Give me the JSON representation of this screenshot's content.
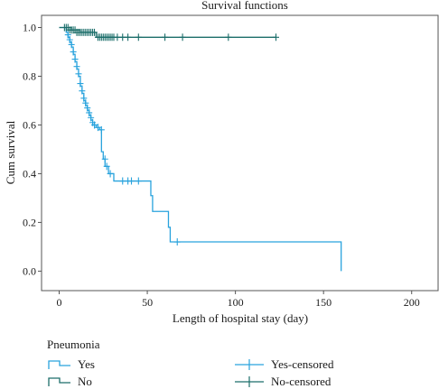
{
  "chart_data": {
    "type": "line",
    "subtype": "kaplan-meier",
    "title": "Survival functions",
    "xlabel": "Length of hospital stay (day)",
    "ylabel": "Cum survival",
    "xlim": [
      -10,
      215
    ],
    "ylim": [
      -0.08,
      1.05
    ],
    "xticks": [
      0,
      50,
      100,
      150,
      200
    ],
    "yticks": [
      0.0,
      0.2,
      0.4,
      0.6,
      0.8,
      1.0
    ],
    "xtick_labels": [
      "0",
      "50",
      "100",
      "150",
      "200"
    ],
    "ytick_labels": [
      "0.0",
      "0.2",
      "0.4",
      "0.6",
      "0.8",
      "1.0"
    ],
    "grid": false,
    "legend_title": "Pneumonia",
    "legend_position": "bottom",
    "series": [
      {
        "name": "Yes",
        "censored_label": "Yes-censored",
        "color": "#29a3dd",
        "steps": [
          [
            0,
            1.0
          ],
          [
            4,
            0.98
          ],
          [
            5,
            0.96
          ],
          [
            6,
            0.94
          ],
          [
            7,
            0.92
          ],
          [
            8,
            0.89
          ],
          [
            9,
            0.86
          ],
          [
            10,
            0.83
          ],
          [
            11,
            0.8
          ],
          [
            12,
            0.76
          ],
          [
            13,
            0.73
          ],
          [
            14,
            0.7
          ],
          [
            15,
            0.68
          ],
          [
            16,
            0.66
          ],
          [
            17,
            0.64
          ],
          [
            18,
            0.62
          ],
          [
            19,
            0.6
          ],
          [
            21,
            0.59
          ],
          [
            23,
            0.58
          ],
          [
            24,
            0.49
          ],
          [
            25,
            0.46
          ],
          [
            26,
            0.43
          ],
          [
            28,
            0.4
          ],
          [
            31,
            0.37
          ],
          [
            52,
            0.31
          ],
          [
            53,
            0.245
          ],
          [
            62,
            0.18
          ],
          [
            63,
            0.12
          ],
          [
            160,
            0.0
          ]
        ],
        "end_x": 160,
        "censored": [
          [
            5,
            0.97
          ],
          [
            6,
            0.95
          ],
          [
            7,
            0.93
          ],
          [
            8,
            0.9
          ],
          [
            9,
            0.87
          ],
          [
            10,
            0.84
          ],
          [
            11,
            0.81
          ],
          [
            12,
            0.77
          ],
          [
            13,
            0.74
          ],
          [
            14,
            0.71
          ],
          [
            15,
            0.69
          ],
          [
            16,
            0.67
          ],
          [
            17,
            0.65
          ],
          [
            18,
            0.63
          ],
          [
            19,
            0.61
          ],
          [
            20,
            0.6
          ],
          [
            22,
            0.59
          ],
          [
            24,
            0.58
          ],
          [
            26,
            0.46
          ],
          [
            27,
            0.43
          ],
          [
            29,
            0.4
          ],
          [
            36,
            0.37
          ],
          [
            39,
            0.37
          ],
          [
            41,
            0.37
          ],
          [
            45,
            0.37
          ],
          [
            67,
            0.12
          ]
        ]
      },
      {
        "name": "No",
        "censored_label": "No-censored",
        "color": "#1c6e6a",
        "steps": [
          [
            0,
            1.0
          ],
          [
            7,
            0.99
          ],
          [
            12,
            0.98
          ],
          [
            21,
            0.96
          ]
        ],
        "end_x": 123,
        "censored": [
          [
            3,
            1.0
          ],
          [
            4,
            1.0
          ],
          [
            5,
            1.0
          ],
          [
            6,
            0.99
          ],
          [
            7,
            0.99
          ],
          [
            8,
            0.99
          ],
          [
            9,
            0.99
          ],
          [
            10,
            0.98
          ],
          [
            11,
            0.98
          ],
          [
            12,
            0.98
          ],
          [
            13,
            0.98
          ],
          [
            14,
            0.98
          ],
          [
            15,
            0.98
          ],
          [
            16,
            0.98
          ],
          [
            17,
            0.98
          ],
          [
            18,
            0.98
          ],
          [
            19,
            0.98
          ],
          [
            20,
            0.98
          ],
          [
            22,
            0.96
          ],
          [
            23,
            0.96
          ],
          [
            24,
            0.96
          ],
          [
            25,
            0.96
          ],
          [
            26,
            0.96
          ],
          [
            27,
            0.96
          ],
          [
            28,
            0.96
          ],
          [
            29,
            0.96
          ],
          [
            30,
            0.96
          ],
          [
            31,
            0.96
          ],
          [
            33,
            0.96
          ],
          [
            36,
            0.96
          ],
          [
            39,
            0.96
          ],
          [
            45,
            0.96
          ],
          [
            60,
            0.96
          ],
          [
            70,
            0.96
          ],
          [
            96,
            0.96
          ],
          [
            123,
            0.96
          ]
        ]
      }
    ]
  }
}
